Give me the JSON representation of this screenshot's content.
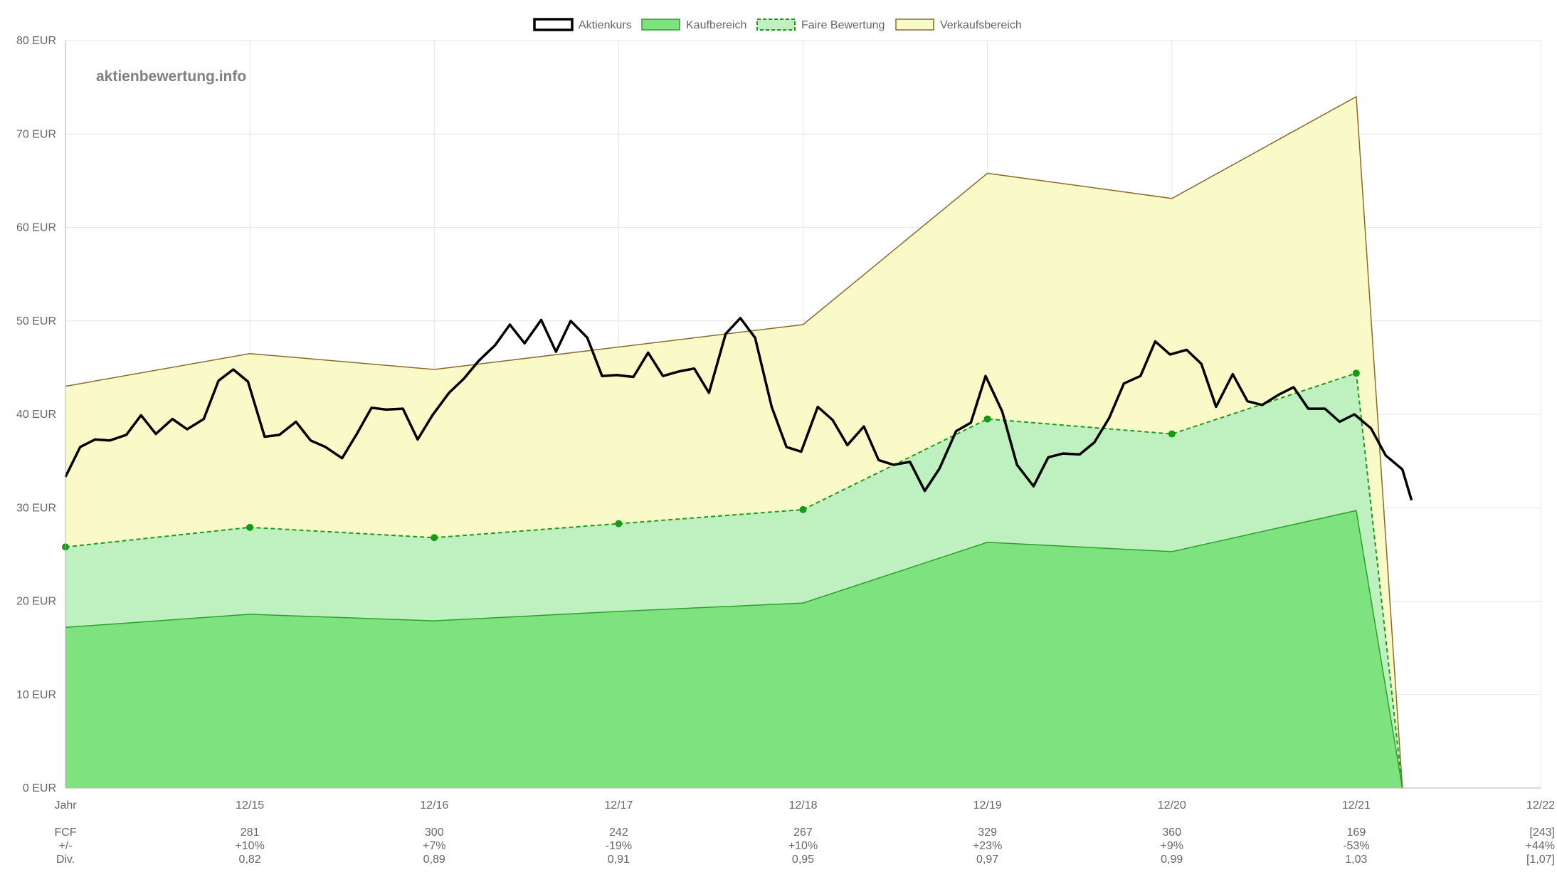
{
  "watermark": "aktienbewertung.info",
  "colors": {
    "price": "#000000",
    "buy_fill": "#7ee37e",
    "buy_line": "#2ea02e",
    "fair_fill": "#bff0bf",
    "fair_line": "#1f9a1f",
    "fair_point": "#169a16",
    "sell_fill": "#fafac8",
    "sell_line": "#8c6a2a",
    "grid": "#e6e6e6",
    "text": "#666666"
  },
  "chart_data": {
    "type": "area",
    "ylim": [
      0,
      80
    ],
    "xlim": [
      0,
      8
    ],
    "y_ticks": [
      {
        "v": 0,
        "label": "0 EUR"
      },
      {
        "v": 10,
        "label": "10 EUR"
      },
      {
        "v": 20,
        "label": "20 EUR"
      },
      {
        "v": 30,
        "label": "30 EUR"
      },
      {
        "v": 40,
        "label": "40 EUR"
      },
      {
        "v": 50,
        "label": "50 EUR"
      },
      {
        "v": 60,
        "label": "60 EUR"
      },
      {
        "v": 70,
        "label": "70 EUR"
      },
      {
        "v": 80,
        "label": "80 EUR"
      }
    ],
    "x_ticks": [
      {
        "v": 0,
        "label": "Jahr"
      },
      {
        "v": 1,
        "label": "12/15"
      },
      {
        "v": 2,
        "label": "12/16"
      },
      {
        "v": 3,
        "label": "12/17"
      },
      {
        "v": 4,
        "label": "12/18"
      },
      {
        "v": 5,
        "label": "12/19"
      },
      {
        "v": 6,
        "label": "12/20"
      },
      {
        "v": 7,
        "label": "12/21"
      },
      {
        "v": 8,
        "label": "12/22"
      }
    ],
    "legend": [
      {
        "key": "price",
        "label": "Aktienkurs"
      },
      {
        "key": "buy",
        "label": "Kaufbereich"
      },
      {
        "key": "fair",
        "label": "Faire Bewertung"
      },
      {
        "key": "sell",
        "label": "Verkaufsbereich"
      }
    ],
    "series": {
      "sell": {
        "name": "Verkaufsbereich",
        "points": [
          [
            0,
            43
          ],
          [
            1,
            46.5
          ],
          [
            2,
            44.8
          ],
          [
            3,
            47.2
          ],
          [
            4,
            49.6
          ],
          [
            5,
            65.8
          ],
          [
            6,
            63.1
          ],
          [
            7,
            74
          ],
          [
            7.25,
            0
          ]
        ]
      },
      "fair": {
        "name": "Faire Bewertung",
        "points": [
          [
            0,
            25.8
          ],
          [
            1,
            27.9
          ],
          [
            2,
            26.8
          ],
          [
            3,
            28.3
          ],
          [
            4,
            29.8
          ],
          [
            5,
            39.5
          ],
          [
            6,
            37.9
          ],
          [
            7,
            44.4
          ],
          [
            7.25,
            0
          ]
        ]
      },
      "buy": {
        "name": "Kaufbereich",
        "points": [
          [
            0,
            17.2
          ],
          [
            1,
            18.6
          ],
          [
            2,
            17.9
          ],
          [
            3,
            18.9
          ],
          [
            4,
            19.8
          ],
          [
            5,
            26.3
          ],
          [
            6,
            25.3
          ],
          [
            7,
            29.7
          ],
          [
            7.25,
            0
          ]
        ]
      },
      "price": {
        "name": "Aktienkurs",
        "points": [
          [
            0,
            33.3
          ],
          [
            0.08,
            36.5
          ],
          [
            0.16,
            37.3
          ],
          [
            0.24,
            37.2
          ],
          [
            0.33,
            37.8
          ],
          [
            0.41,
            39.9
          ],
          [
            0.49,
            37.9
          ],
          [
            0.58,
            39.5
          ],
          [
            0.66,
            38.4
          ],
          [
            0.75,
            39.5
          ],
          [
            0.83,
            43.6
          ],
          [
            0.91,
            44.8
          ],
          [
            0.99,
            43.5
          ],
          [
            1.08,
            37.6
          ],
          [
            1.16,
            37.8
          ],
          [
            1.25,
            39.2
          ],
          [
            1.33,
            37.2
          ],
          [
            1.41,
            36.5
          ],
          [
            1.5,
            35.3
          ],
          [
            1.58,
            37.9
          ],
          [
            1.66,
            40.7
          ],
          [
            1.74,
            40.5
          ],
          [
            1.83,
            40.6
          ],
          [
            1.91,
            37.3
          ],
          [
            1.99,
            39.9
          ],
          [
            2.08,
            42.3
          ],
          [
            2.16,
            43.8
          ],
          [
            2.24,
            45.7
          ],
          [
            2.33,
            47.4
          ],
          [
            2.41,
            49.6
          ],
          [
            2.49,
            47.6
          ],
          [
            2.58,
            50.1
          ],
          [
            2.66,
            46.7
          ],
          [
            2.74,
            50
          ],
          [
            2.83,
            48.2
          ],
          [
            2.91,
            44.1
          ],
          [
            2.99,
            44.2
          ],
          [
            3.08,
            44
          ],
          [
            3.16,
            46.6
          ],
          [
            3.24,
            44.1
          ],
          [
            3.33,
            44.6
          ],
          [
            3.41,
            44.9
          ],
          [
            3.49,
            42.3
          ],
          [
            3.58,
            48.6
          ],
          [
            3.66,
            50.3
          ],
          [
            3.74,
            48.2
          ],
          [
            3.83,
            40.8
          ],
          [
            3.91,
            36.5
          ],
          [
            3.99,
            36
          ],
          [
            4.08,
            40.8
          ],
          [
            4.16,
            39.4
          ],
          [
            4.24,
            36.7
          ],
          [
            4.33,
            38.7
          ],
          [
            4.41,
            35.1
          ],
          [
            4.49,
            34.6
          ],
          [
            4.58,
            34.9
          ],
          [
            4.66,
            31.8
          ],
          [
            4.74,
            34.2
          ],
          [
            4.83,
            38.2
          ],
          [
            4.91,
            39.1
          ],
          [
            4.99,
            44.1
          ],
          [
            5.08,
            40.3
          ],
          [
            5.16,
            34.6
          ],
          [
            5.25,
            32.3
          ],
          [
            5.33,
            35.4
          ],
          [
            5.41,
            35.8
          ],
          [
            5.5,
            35.7
          ],
          [
            5.58,
            37
          ],
          [
            5.66,
            39.6
          ],
          [
            5.74,
            43.3
          ],
          [
            5.83,
            44.1
          ],
          [
            5.91,
            47.8
          ],
          [
            5.99,
            46.4
          ],
          [
            6.08,
            46.9
          ],
          [
            6.16,
            45.4
          ],
          [
            6.24,
            40.8
          ],
          [
            6.33,
            44.3
          ],
          [
            6.41,
            41.4
          ],
          [
            6.49,
            41
          ],
          [
            6.58,
            42.1
          ],
          [
            6.66,
            42.9
          ],
          [
            6.74,
            40.6
          ],
          [
            6.83,
            40.6
          ],
          [
            6.91,
            39.2
          ],
          [
            6.99,
            40
          ],
          [
            7.08,
            38.5
          ],
          [
            7.16,
            35.6
          ],
          [
            7.25,
            34.1
          ],
          [
            7.3,
            30.8
          ]
        ]
      }
    },
    "table": {
      "rows": [
        {
          "label": "FCF",
          "values": [
            "281",
            "300",
            "242",
            "267",
            "329",
            "360",
            "169",
            "[243]"
          ]
        },
        {
          "label": "+/-",
          "values": [
            "+10%",
            "+7%",
            "-19%",
            "+10%",
            "+23%",
            "+9%",
            "-53%",
            "+44%"
          ]
        },
        {
          "label": "Div.",
          "values": [
            "0,82",
            "0,89",
            "0,91",
            "0,95",
            "0,97",
            "0,99",
            "1,03",
            "[1,07]"
          ]
        }
      ]
    }
  }
}
